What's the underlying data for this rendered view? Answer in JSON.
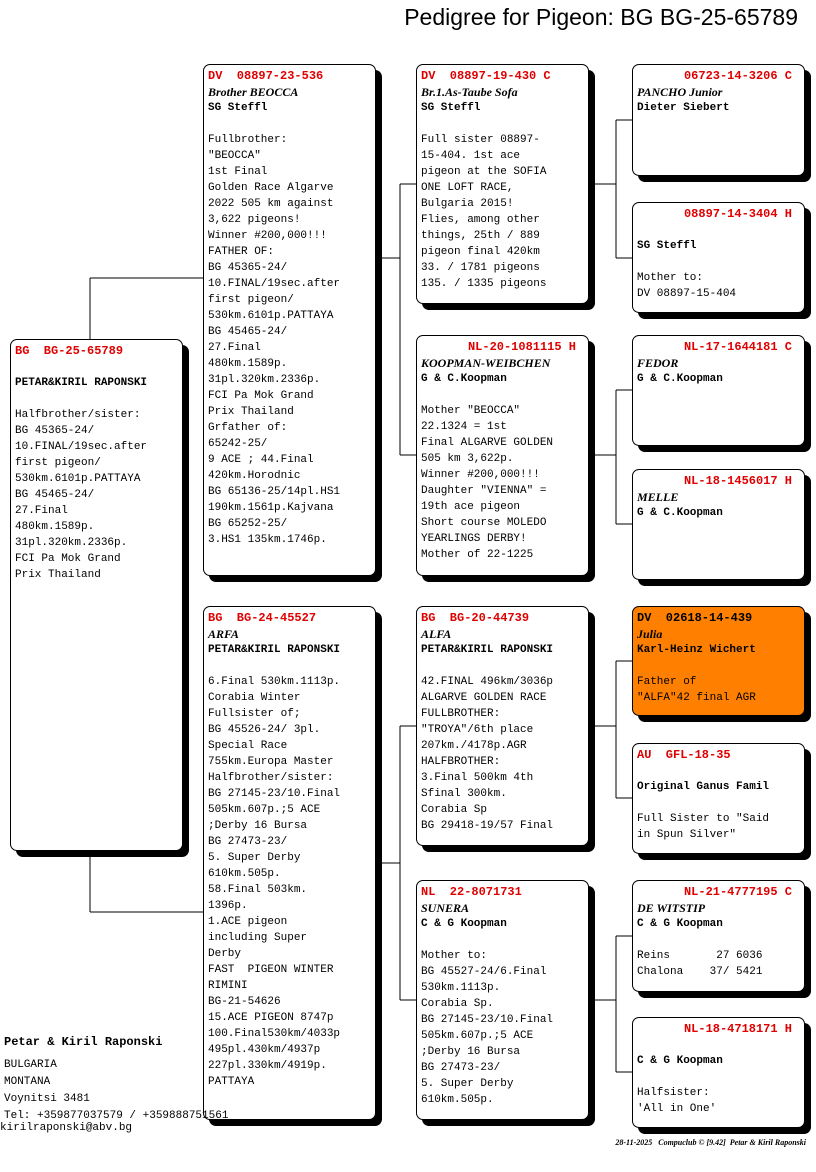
{
  "title": "Pedigree for Pigeon: BG  BG-25-65789",
  "accent_color": "#e00000",
  "highlight_color": "#ff8000",
  "pigeons": [
    {
      "ring": "BG  BG-25-65789",
      "name": "",
      "owner": "PETAR&KIRIL RAPONSKI",
      "notes": [
        "Halfbrother/sister:",
        "BG 45365-24/",
        "10.FINAL/19sec.after",
        "first pigeon/",
        "530km.6101p.PATTAYA",
        "BG 45465-24/",
        "27.Final",
        "480km.1589p.",
        "31pl.320km.2336p.",
        "FCI Pa Mok Grand",
        "Prix Thailand"
      ]
    },
    {
      "ring": "DV  08897-23-536",
      "name": "Brother BEOCCA",
      "owner": "SG Steffl",
      "notes": [
        "Fullbrother:",
        "\"BEOCCA\"",
        "1st Final",
        "Golden Race Algarve",
        "2022 505 km against",
        "3,622 pigeons!",
        "Winner #200,000!!!",
        "FATHER OF:",
        "BG 45365-24/",
        "10.FINAL/19sec.after",
        "first pigeon/",
        "530km.6101p.PATTAYA",
        "BG 45465-24/",
        "27.Final",
        "480km.1589p.",
        "31pl.320km.2336p.",
        "FCI Pa Mok Grand",
        "Prix Thailand",
        "Grfather of:",
        "65242-25/",
        "9 ACE ; 44.Final",
        "420km.Horodnic",
        "BG 65136-25/14pl.HS1",
        "190km.1561p.Kajvana",
        "BG 65252-25/",
        "3.HS1 135km.1746p."
      ]
    },
    {
      "ring": "BG  BG-24-45527",
      "name": "ARFA",
      "owner": "PETAR&KIRIL RAPONSKI",
      "notes": [
        "6.Final 530km.1113p.",
        "Corabia Winter",
        "Fullsister of;",
        "BG 45526-24/ 3pl.",
        "Special Race",
        "755km.Europa Master",
        "Halfbrother/sister:",
        "BG 27145-23/10.Final",
        "505km.607p.;5 ACE",
        ";Derby 16 Bursa",
        "BG 27473-23/",
        "5. Super Derby",
        "610km.505p.",
        "58.Final 503km.",
        "1396p.",
        "1.ACE pigeon",
        "including Super",
        "Derby",
        "FAST  PIGEON WINTER",
        "RIMINI",
        "BG-21-54626",
        "15.ACE PIGEON 8747p",
        "100.Final530km/4033p",
        "495pl.430km/4937p",
        "227pl.330km/4919p.",
        "PATTAYA"
      ]
    },
    {
      "ring": "DV  08897-19-430 C",
      "name": "Br.1.As-Taube Sofa",
      "owner": "SG Steffl",
      "notes": [
        "Full sister 08897-",
        "15-404. 1st ace",
        "pigeon at the SOFIA",
        "ONE LOFT RACE,",
        "Bulgaria 2015!",
        "Flies, among other",
        "things, 25th / 889",
        "pigeon final 420km",
        "33. / 1781 pigeons",
        "135. / 1335 pigeons"
      ]
    },
    {
      "ring": "NL-20-1081115 H",
      "name": "KOOPMAN-WEIBCHEN",
      "owner": "G & C.Koopman",
      "notes": [
        "Mother \"BEOCCA\"",
        "22.1324 = 1st",
        "Final ALGARVE GOLDEN",
        "505 km 3,622p.",
        "Winner #200,000!!!",
        "Daughter \"VIENNA\" =",
        "19th ace pigeon",
        "Short course MOLEDO",
        "YEARLINGS DERBY!",
        "Mother of 22-1225"
      ]
    },
    {
      "ring": "BG  BG-20-44739",
      "name": "ALFA",
      "owner": "PETAR&KIRIL RAPONSKI",
      "notes": [
        "42.FINAL 496km/3036p",
        "ALGARVE GOLDEN RACE",
        "FULLBROTHER:",
        "\"TROYA\"/6th place",
        "207km./4178p.AGR",
        "HALFBROTHER:",
        "3.Final 500km 4th",
        "Sfinal 300km.",
        "Corabia Sp",
        "BG 29418-19/57 Final"
      ]
    },
    {
      "ring": "NL  22-8071731",
      "name": "SUNERA",
      "owner": "C & G Koopman",
      "notes": [
        "Mother to:",
        "BG 45527-24/6.Final",
        "530km.1113p.",
        "Corabia Sp.",
        "BG 27145-23/10.Final",
        "505km.607p.;5 ACE",
        ";Derby 16 Bursa",
        "BG 27473-23/",
        "5. Super Derby",
        "610km.505p."
      ]
    },
    {
      "ring": "06723-14-3206 C",
      "name": "PANCHO Junior",
      "owner": "Dieter Siebert",
      "notes": []
    },
    {
      "ring": "08897-14-3404 H",
      "name": "",
      "owner": "SG Steffl",
      "notes": [
        "Mother to:",
        "DV 08897-15-404"
      ]
    },
    {
      "ring": "NL-17-1644181 C",
      "name": "FEDOR",
      "owner": "G & C.Koopman",
      "notes": []
    },
    {
      "ring": "NL-18-1456017 H",
      "name": "MELLE",
      "owner": "G & C.Koopman",
      "notes": []
    },
    {
      "ring": "DV  02618-14-439",
      "name": "Julia",
      "owner": "Karl-Heinz Wichert",
      "notes": [
        "Father of",
        "\"ALFA\"42 final AGR"
      ]
    },
    {
      "ring": "AU  GFL-18-35",
      "name": "",
      "owner": "Original Ganus Famil",
      "notes": [
        "Full Sister to \"Said",
        "in Spun Silver\""
      ]
    },
    {
      "ring": "NL-21-4777195 C",
      "name": "DE WITSTIP",
      "owner": "C & G Koopman",
      "notes": [
        "Reins       27 6036",
        "Chalona    37/ 5421"
      ]
    },
    {
      "ring": "NL-18-4718171 H",
      "name": "",
      "owner": "C & G Koopman",
      "notes": [
        "Halfsister:",
        "'All in One'"
      ]
    }
  ],
  "breeder": {
    "name": "Petar & Kiril Raponski",
    "country": "BULGARIA",
    "region": "MONTANA",
    "address": "Voynitsi 3481",
    "phone": "Tel: +359877037579 / +359888751561",
    "email": "kirilraponski@abv.bg"
  },
  "footer": "28-11-2025   Compuclub © [9.42]  Petar & Kiril Raponski"
}
